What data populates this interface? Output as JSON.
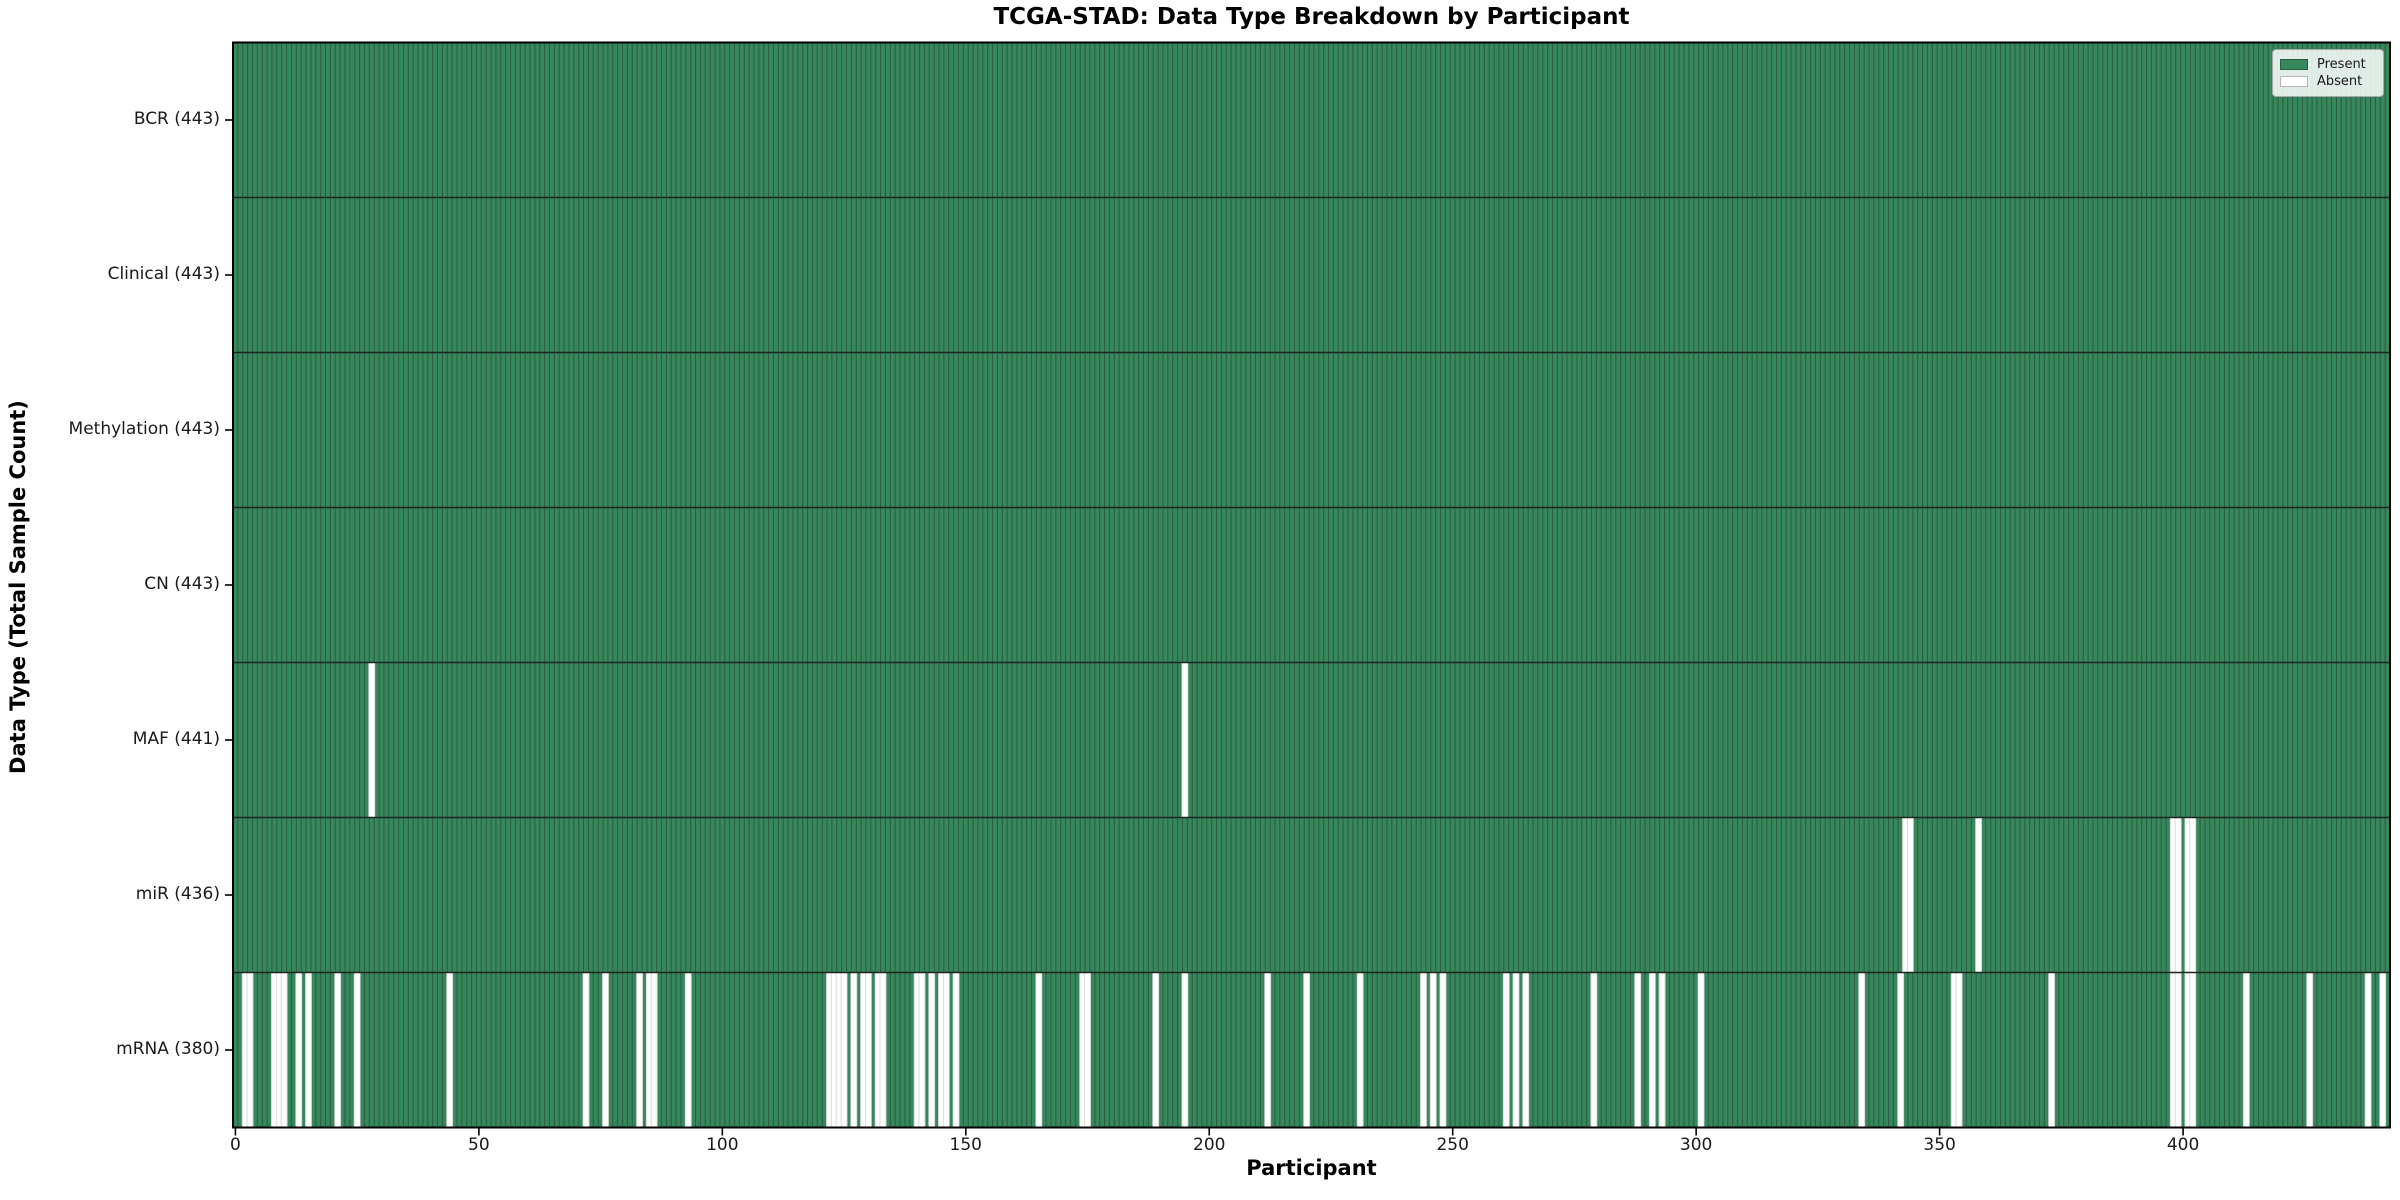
{
  "chart_data": {
    "type": "heatmap",
    "title": "TCGA-STAD: Data Type Breakdown by Participant",
    "xlabel": "Participant",
    "ylabel": "Data Type (Total Sample Count)",
    "n_participants": 443,
    "x_ticks": [
      0,
      50,
      100,
      150,
      200,
      250,
      300,
      350,
      400
    ],
    "x_range": [
      0,
      443
    ],
    "grid": false,
    "legend_position": "upper right",
    "legend": [
      {
        "label": "Present",
        "color": "#37875c"
      },
      {
        "label": "Absent",
        "color": "#ffffff"
      }
    ],
    "cell_states": {
      "present": 1,
      "absent": 0
    },
    "rows": [
      {
        "label": "BCR (443)",
        "data_type": "BCR",
        "total_samples": 443,
        "absent_participants": []
      },
      {
        "label": "Clinical (443)",
        "data_type": "Clinical",
        "total_samples": 443,
        "absent_participants": []
      },
      {
        "label": "Methylation (443)",
        "data_type": "Methylation",
        "total_samples": 443,
        "absent_participants": []
      },
      {
        "label": "CN (443)",
        "data_type": "CN",
        "total_samples": 443,
        "absent_participants": []
      },
      {
        "label": "MAF (441)",
        "data_type": "MAF",
        "total_samples": 441,
        "absent_participants": [
          28,
          195
        ]
      },
      {
        "label": "miR (436)",
        "data_type": "miR",
        "total_samples": 436,
        "absent_participants": [
          343,
          344,
          358,
          398,
          399,
          401,
          402
        ]
      },
      {
        "label": "mRNA (380)",
        "data_type": "mRNA",
        "total_samples": 380,
        "absent_participants": [
          2,
          3,
          8,
          9,
          10,
          13,
          15,
          21,
          25,
          44,
          72,
          76,
          83,
          85,
          86,
          93,
          122,
          123,
          124,
          125,
          127,
          129,
          130,
          132,
          133,
          140,
          141,
          143,
          145,
          146,
          148,
          165,
          174,
          175,
          189,
          195,
          212,
          220,
          231,
          244,
          246,
          248,
          261,
          263,
          265,
          279,
          288,
          291,
          293,
          301,
          334,
          342,
          353,
          354,
          373,
          398,
          399,
          401,
          402,
          413,
          426,
          438,
          441
        ]
      }
    ],
    "colors": {
      "present_fill": "#37875c",
      "bar_edge": "#2a5c42",
      "absent_fill": "#ffffff",
      "absent_edge": "#cdd2ce",
      "row_divider": "#1c241e",
      "spine": "#000000",
      "background": "#ffffff"
    }
  }
}
